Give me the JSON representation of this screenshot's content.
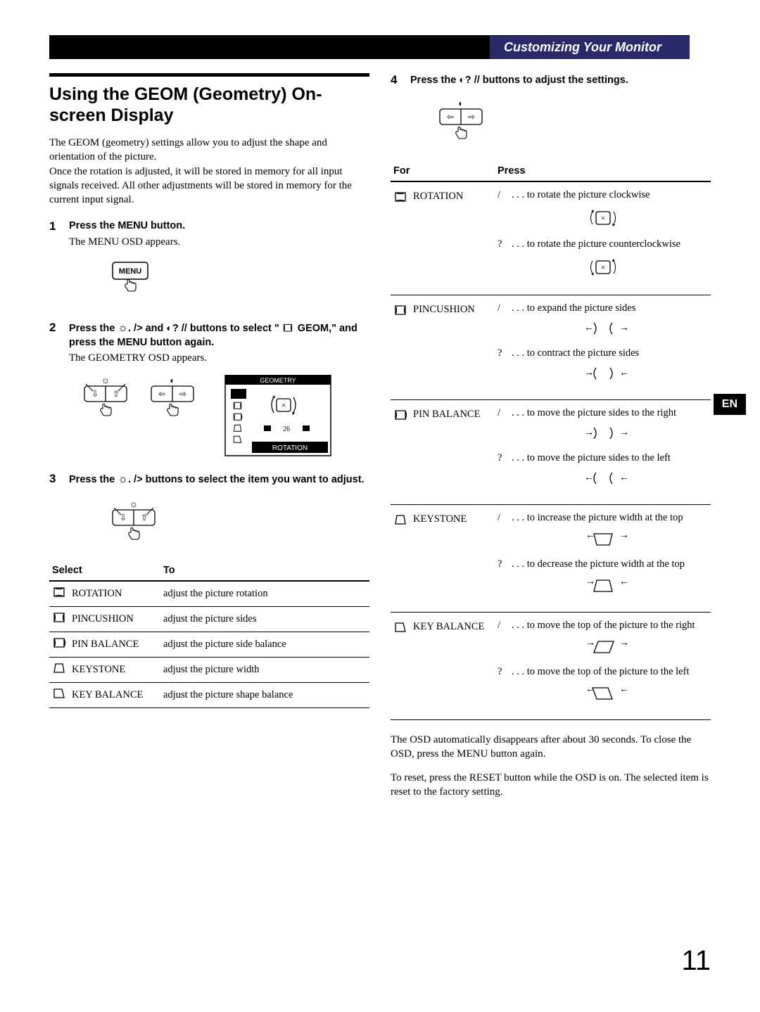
{
  "header": {
    "section_title": "Customizing Your Monitor"
  },
  "lang_tab": "EN",
  "title": "Using the GEOM (Geometry) On-screen Display",
  "intro": "The GEOM (geometry) settings allow you to adjust the shape and orientation of the picture.\nOnce the rotation is adjusted, it will be stored in memory for all input signals received. All other adjustments will be stored in memory for the current input signal.",
  "steps": [
    {
      "num": "1",
      "title": "Press the MENU button.",
      "text": "The MENU OSD appears."
    },
    {
      "num": "2",
      "title": "Press the ☼. /> and ◐? // buttons to select \"  GEOM,\" and press the MENU button again.",
      "text": "The GEOMETRY OSD appears."
    },
    {
      "num": "3",
      "title": "Press the ☼. /> buttons to select the item you want to adjust.",
      "text": ""
    },
    {
      "num": "4",
      "title": "Press the ◐? // buttons to adjust the settings.",
      "text": ""
    }
  ],
  "geometry_osd": {
    "label": "GEOMETRY",
    "value": "26",
    "selected": "ROTATION"
  },
  "select_table": {
    "headers": [
      "Select",
      "To"
    ],
    "rows": [
      {
        "icon": "rotation",
        "name": "ROTATION",
        "desc": "adjust the picture rotation"
      },
      {
        "icon": "pincushion",
        "name": "PINCUSHION",
        "desc": "adjust the picture sides"
      },
      {
        "icon": "pinbalance",
        "name": "PIN BALANCE",
        "desc": "adjust the picture side balance"
      },
      {
        "icon": "keystone",
        "name": "KEYSTONE",
        "desc": "adjust the picture width"
      },
      {
        "icon": "keybalance",
        "name": "KEY BALANCE",
        "desc": "adjust the picture shape balance"
      }
    ]
  },
  "press_table": {
    "headers": [
      "For",
      "Press"
    ],
    "rows": [
      {
        "icon": "rotation",
        "name": "ROTATION",
        "a": {
          "sym": "/",
          "text": ". . . to rotate the picture clockwise"
        },
        "b": {
          "sym": "?",
          "text": ". . . to rotate the picture counterclockwise"
        }
      },
      {
        "icon": "pincushion",
        "name": "PINCUSHION",
        "a": {
          "sym": "/",
          "text": ". . . to expand the picture sides"
        },
        "b": {
          "sym": "?",
          "text": ". . . to contract the picture sides"
        }
      },
      {
        "icon": "pinbalance",
        "name": "PIN BALANCE",
        "a": {
          "sym": "/",
          "text": ". . . to move the picture sides to the right"
        },
        "b": {
          "sym": "?",
          "text": ". . . to move the picture sides to the left"
        }
      },
      {
        "icon": "keystone",
        "name": "KEYSTONE",
        "a": {
          "sym": "/",
          "text": ". . . to increase the picture width at the top"
        },
        "b": {
          "sym": "?",
          "text": ". . . to decrease the picture width at the top"
        }
      },
      {
        "icon": "keybalance",
        "name": "KEY BALANCE",
        "a": {
          "sym": "/",
          "text": ". . . to move the top of  the picture to the right"
        },
        "b": {
          "sym": "?",
          "text": ". . . to move the top of  the picture to the left"
        }
      }
    ]
  },
  "footer": {
    "p1": "The OSD automatically disappears after about 30 seconds. To close the OSD, press the MENU button again.",
    "p2": "To reset,  press the RESET button while the OSD is on. The selected item is reset to the factory setting."
  },
  "page_number": "11"
}
